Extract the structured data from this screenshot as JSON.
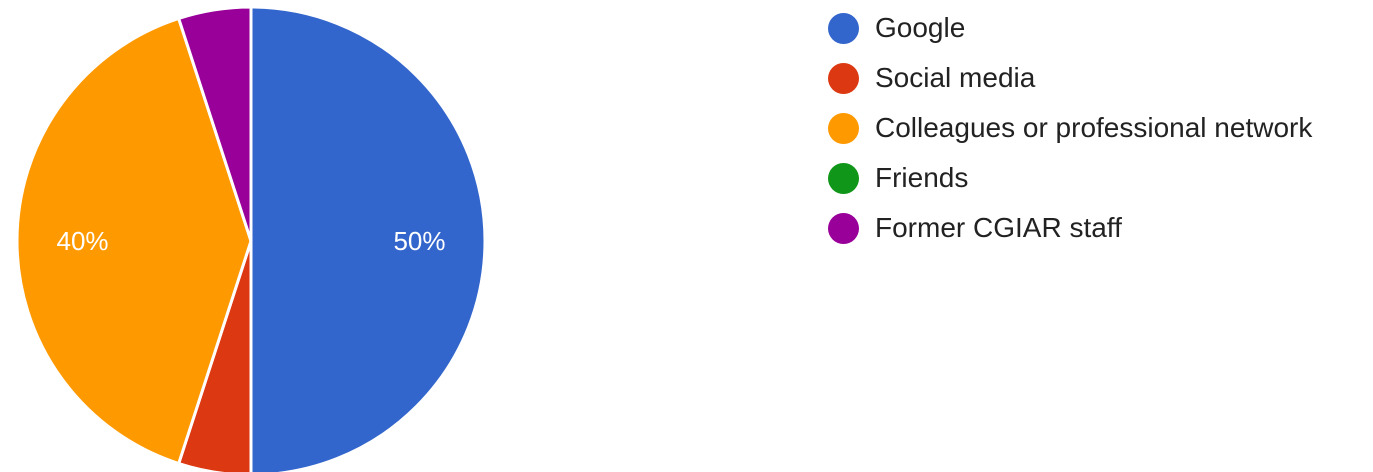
{
  "chart_data": {
    "type": "pie",
    "title": "",
    "slices": [
      {
        "label": "Google",
        "value": 50,
        "color": "#3366cc",
        "data_label": "50%"
      },
      {
        "label": "Social media",
        "value": 5,
        "color": "#dc3912",
        "data_label": ""
      },
      {
        "label": "Colleagues or professional network",
        "value": 40,
        "color": "#ff9900",
        "data_label": "40%"
      },
      {
        "label": "Friends",
        "value": 0,
        "color": "#109618",
        "data_label": ""
      },
      {
        "label": "Former CGIAR staff",
        "value": 5,
        "color": "#990099",
        "data_label": ""
      }
    ],
    "legend_position": "right",
    "start_angle_deg": 90,
    "direction": "clockwise"
  }
}
